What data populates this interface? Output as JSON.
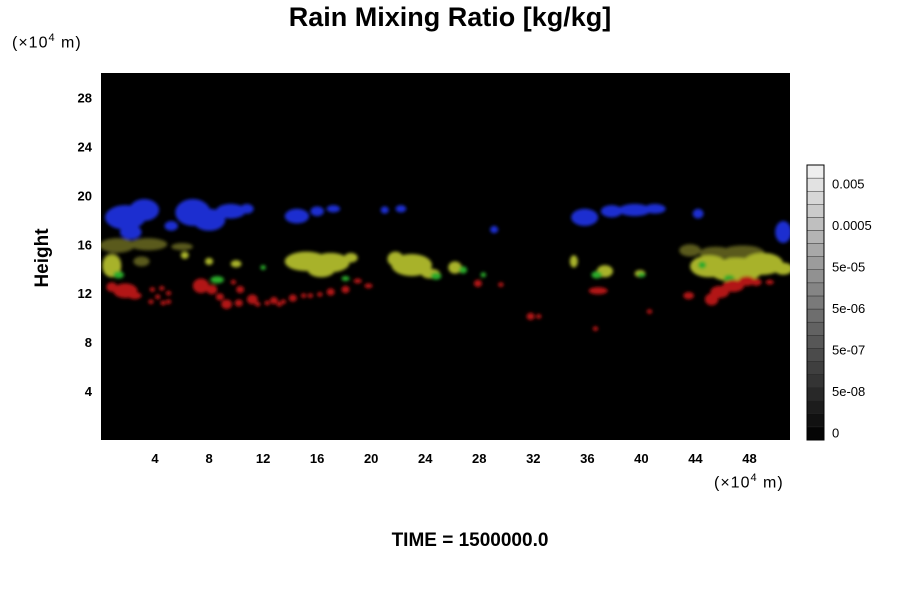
{
  "chart_data": {
    "type": "heatmap",
    "title": "Rain Mixing Ratio [kg/kg]",
    "ylabel": "Height",
    "xlabel": "",
    "x_unit": {
      "prefix": "(×10",
      "exp": "4",
      "suffix": " m)"
    },
    "y_unit": {
      "prefix": "(×10",
      "exp": "4",
      "suffix": " m)"
    },
    "xlim": [
      0,
      51
    ],
    "ylim": [
      0,
      30
    ],
    "xticks": [
      4,
      8,
      12,
      16,
      20,
      24,
      28,
      32,
      36,
      40,
      44,
      48
    ],
    "yticks": [
      4,
      8,
      12,
      16,
      20,
      24,
      28
    ],
    "background_color": "#000000",
    "colorbar": {
      "labels": [
        "0",
        "5e-08",
        "5e-07",
        "5e-06",
        "5e-05",
        "0.0005",
        "0.005"
      ],
      "levels": 21,
      "color_min": "#050505",
      "color_max": "#eeeeee"
    },
    "features": [
      {
        "name": "blue",
        "color": "#1c2fd0",
        "blobs": [
          [
            1.8,
            18.2,
            1.5,
            1.0
          ],
          [
            3.2,
            18.8,
            1.1,
            0.9
          ],
          [
            2.2,
            17.0,
            0.8,
            0.6
          ],
          [
            5.2,
            17.5,
            0.5,
            0.4
          ],
          [
            6.8,
            18.6,
            1.3,
            1.1
          ],
          [
            8.0,
            18.0,
            1.2,
            0.9
          ],
          [
            9.6,
            18.7,
            1.1,
            0.6
          ],
          [
            10.8,
            18.9,
            0.5,
            0.4
          ],
          [
            14.5,
            18.3,
            0.9,
            0.6
          ],
          [
            16.0,
            18.7,
            0.5,
            0.4
          ],
          [
            17.2,
            18.9,
            0.5,
            0.3
          ],
          [
            21.0,
            18.8,
            0.3,
            0.3
          ],
          [
            22.2,
            18.9,
            0.4,
            0.3
          ],
          [
            29.1,
            17.2,
            0.3,
            0.3
          ],
          [
            35.8,
            18.2,
            1.0,
            0.7
          ],
          [
            37.8,
            18.7,
            0.8,
            0.5
          ],
          [
            39.5,
            18.8,
            1.2,
            0.5
          ],
          [
            41.0,
            18.9,
            0.8,
            0.4
          ],
          [
            44.2,
            18.5,
            0.4,
            0.4
          ],
          [
            50.5,
            17.0,
            0.6,
            0.9
          ]
        ]
      },
      {
        "name": "olive",
        "color": "#5a5a1e",
        "blobs": [
          [
            1.2,
            15.9,
            1.3,
            0.6
          ],
          [
            3.5,
            16.0,
            1.4,
            0.5
          ],
          [
            6.0,
            15.8,
            0.8,
            0.3
          ],
          [
            0.8,
            14.4,
            0.7,
            0.9
          ],
          [
            3.0,
            14.6,
            0.6,
            0.4
          ],
          [
            47.5,
            15.3,
            1.6,
            0.6
          ],
          [
            45.5,
            15.3,
            1.2,
            0.5
          ],
          [
            43.6,
            15.5,
            0.8,
            0.5
          ]
        ]
      },
      {
        "name": "yellow-green",
        "color": "#a8b22a",
        "blobs": [
          [
            0.8,
            14.2,
            0.7,
            0.9
          ],
          [
            6.2,
            15.1,
            0.3,
            0.3
          ],
          [
            8.0,
            14.6,
            0.3,
            0.3
          ],
          [
            10.0,
            14.4,
            0.4,
            0.3
          ],
          [
            15.2,
            14.6,
            1.6,
            0.8
          ],
          [
            17.0,
            14.5,
            1.4,
            0.8
          ],
          [
            16.3,
            13.9,
            1.0,
            0.6
          ],
          [
            18.5,
            14.9,
            0.5,
            0.4
          ],
          [
            23.0,
            14.3,
            1.5,
            0.9
          ],
          [
            21.8,
            14.8,
            0.6,
            0.6
          ],
          [
            24.4,
            13.6,
            0.7,
            0.4
          ],
          [
            26.2,
            14.1,
            0.5,
            0.5
          ],
          [
            35.0,
            14.6,
            0.3,
            0.5
          ],
          [
            37.3,
            13.8,
            0.6,
            0.5
          ],
          [
            39.9,
            13.6,
            0.4,
            0.3
          ],
          [
            45.0,
            14.2,
            1.4,
            0.9
          ],
          [
            47.0,
            13.9,
            2.0,
            1.0
          ],
          [
            49.0,
            14.4,
            1.5,
            0.9
          ],
          [
            50.5,
            14.0,
            0.7,
            0.5
          ]
        ]
      },
      {
        "name": "green",
        "color": "#2bab2c",
        "blobs": [
          [
            1.3,
            13.5,
            0.4,
            0.3
          ],
          [
            8.6,
            13.1,
            0.5,
            0.3
          ],
          [
            12.0,
            14.1,
            0.2,
            0.2
          ],
          [
            18.1,
            13.2,
            0.3,
            0.2
          ],
          [
            24.8,
            13.4,
            0.4,
            0.3
          ],
          [
            26.8,
            13.9,
            0.3,
            0.3
          ],
          [
            28.3,
            13.5,
            0.2,
            0.2
          ],
          [
            36.7,
            13.5,
            0.4,
            0.3
          ],
          [
            40.0,
            13.5,
            0.3,
            0.2
          ],
          [
            46.5,
            13.2,
            0.4,
            0.3
          ],
          [
            44.5,
            14.3,
            0.3,
            0.3
          ]
        ]
      },
      {
        "name": "red",
        "color": "#b21414",
        "blobs": [
          [
            0.8,
            12.5,
            0.4,
            0.4
          ],
          [
            1.8,
            12.2,
            0.9,
            0.6
          ],
          [
            2.5,
            11.8,
            0.5,
            0.3
          ],
          [
            3.8,
            12.3,
            0.2,
            0.2
          ],
          [
            4.2,
            11.7,
            0.2,
            0.2
          ],
          [
            4.5,
            12.4,
            0.2,
            0.2
          ],
          [
            4.6,
            11.2,
            0.2,
            0.2
          ],
          [
            5.0,
            12.0,
            0.2,
            0.2
          ],
          [
            5.0,
            11.3,
            0.2,
            0.2
          ],
          [
            3.7,
            11.3,
            0.2,
            0.2
          ],
          [
            7.4,
            12.6,
            0.6,
            0.6
          ],
          [
            8.2,
            12.3,
            0.4,
            0.4
          ],
          [
            8.8,
            11.7,
            0.3,
            0.3
          ],
          [
            9.3,
            11.1,
            0.4,
            0.4
          ],
          [
            10.2,
            11.2,
            0.3,
            0.3
          ],
          [
            10.3,
            12.3,
            0.3,
            0.3
          ],
          [
            9.8,
            12.9,
            0.2,
            0.2
          ],
          [
            11.2,
            11.5,
            0.4,
            0.4
          ],
          [
            11.6,
            11.1,
            0.2,
            0.2
          ],
          [
            12.3,
            11.2,
            0.2,
            0.2
          ],
          [
            13.2,
            11.1,
            0.2,
            0.2
          ],
          [
            12.8,
            11.4,
            0.3,
            0.3
          ],
          [
            13.5,
            11.3,
            0.2,
            0.2
          ],
          [
            14.2,
            11.6,
            0.3,
            0.3
          ],
          [
            15.0,
            11.8,
            0.2,
            0.2
          ],
          [
            15.5,
            11.8,
            0.2,
            0.2
          ],
          [
            16.2,
            11.9,
            0.2,
            0.2
          ],
          [
            17.0,
            12.1,
            0.3,
            0.3
          ],
          [
            18.1,
            12.3,
            0.3,
            0.3
          ],
          [
            19.0,
            13.0,
            0.3,
            0.2
          ],
          [
            19.8,
            12.6,
            0.3,
            0.2
          ],
          [
            27.9,
            12.8,
            0.3,
            0.3
          ],
          [
            29.6,
            12.7,
            0.2,
            0.2
          ],
          [
            31.8,
            10.1,
            0.3,
            0.3
          ],
          [
            32.4,
            10.1,
            0.2,
            0.2
          ],
          [
            36.8,
            12.2,
            0.7,
            0.3
          ],
          [
            40.6,
            10.5,
            0.2,
            0.2
          ],
          [
            36.6,
            9.1,
            0.2,
            0.2
          ],
          [
            43.5,
            11.8,
            0.4,
            0.3
          ],
          [
            45.2,
            11.5,
            0.5,
            0.5
          ],
          [
            45.8,
            12.1,
            0.7,
            0.5
          ],
          [
            46.8,
            12.6,
            0.8,
            0.5
          ],
          [
            47.8,
            13.0,
            0.6,
            0.4
          ],
          [
            48.5,
            12.9,
            0.4,
            0.3
          ],
          [
            49.5,
            12.9,
            0.3,
            0.2
          ]
        ]
      }
    ]
  },
  "footer": {
    "time_label": "TIME = 1500000.0"
  }
}
